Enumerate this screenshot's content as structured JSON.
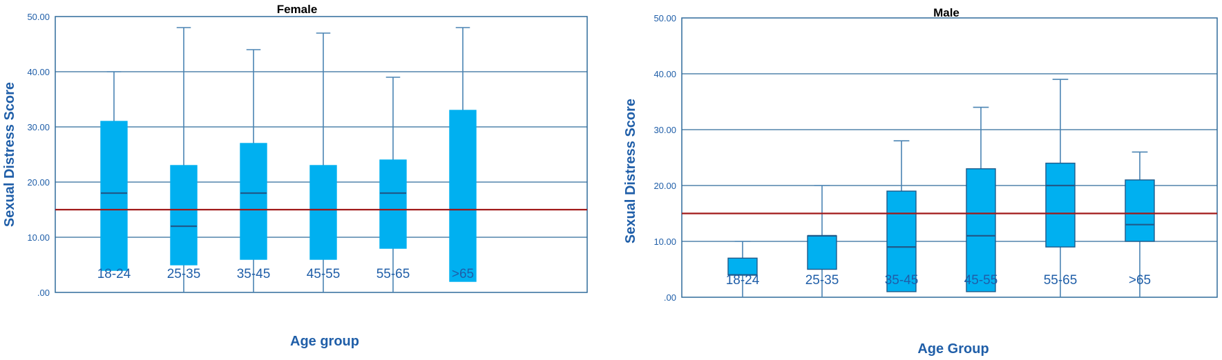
{
  "chart_data": [
    {
      "type": "box",
      "title": "Female",
      "xlabel": "Age group",
      "ylabel": "Sexual Distress Score",
      "ylim": [
        0,
        50
      ],
      "yticks": [
        ".00",
        "10.00",
        "20.00",
        "30.00",
        "40.00",
        "50.00"
      ],
      "categories": [
        "18-24",
        "25-35",
        "35-45",
        "45-55",
        "55-65",
        ">65"
      ],
      "boxes": [
        {
          "min": 4,
          "q1": 4,
          "median": 18,
          "q3": 31,
          "max": 40
        },
        {
          "min": 0,
          "q1": 5,
          "median": 12,
          "q3": 23,
          "max": 48
        },
        {
          "min": 0,
          "q1": 6,
          "median": 18,
          "q3": 27,
          "max": 44
        },
        {
          "min": 0,
          "q1": 6,
          "median": 15,
          "q3": 23,
          "max": 47
        },
        {
          "min": 0,
          "q1": 8,
          "median": 18,
          "q3": 24,
          "max": 39
        },
        {
          "min": 2,
          "q1": 2,
          "median": 15,
          "q3": 33,
          "max": 48
        }
      ],
      "reference_line": 15,
      "grid": true
    },
    {
      "type": "box",
      "title": "Male",
      "xlabel": "Age Group",
      "ylabel": "Sexual Distress Score",
      "ylim": [
        0,
        50
      ],
      "yticks": [
        ".00",
        "10.00",
        "20.00",
        "30.00",
        "40.00",
        "50.00"
      ],
      "categories": [
        "18-24",
        "25-35",
        "35-45",
        "45-55",
        "55-65",
        ">65"
      ],
      "boxes": [
        {
          "min": 0,
          "q1": 4,
          "median": 4,
          "q3": 7,
          "max": 10
        },
        {
          "min": 0,
          "q1": 5,
          "median": 11,
          "q3": 11,
          "max": 20
        },
        {
          "min": 1,
          "q1": 1,
          "median": 9,
          "q3": 19,
          "max": 28
        },
        {
          "min": 1,
          "q1": 1,
          "median": 11,
          "q3": 23,
          "max": 34
        },
        {
          "min": 0,
          "q1": 9,
          "median": 20,
          "q3": 24,
          "max": 39
        },
        {
          "min": 0,
          "q1": 10,
          "median": 13,
          "q3": 21,
          "max": 26
        }
      ],
      "reference_line": 15,
      "grid": true
    }
  ],
  "colors": {
    "box_fill": "#00b0f0",
    "box_stroke": "#1f5a8a",
    "whisker": "#4a84b3",
    "grid": "#2f6a9a",
    "reference": "#a01818",
    "text": "#1f5ea8"
  }
}
